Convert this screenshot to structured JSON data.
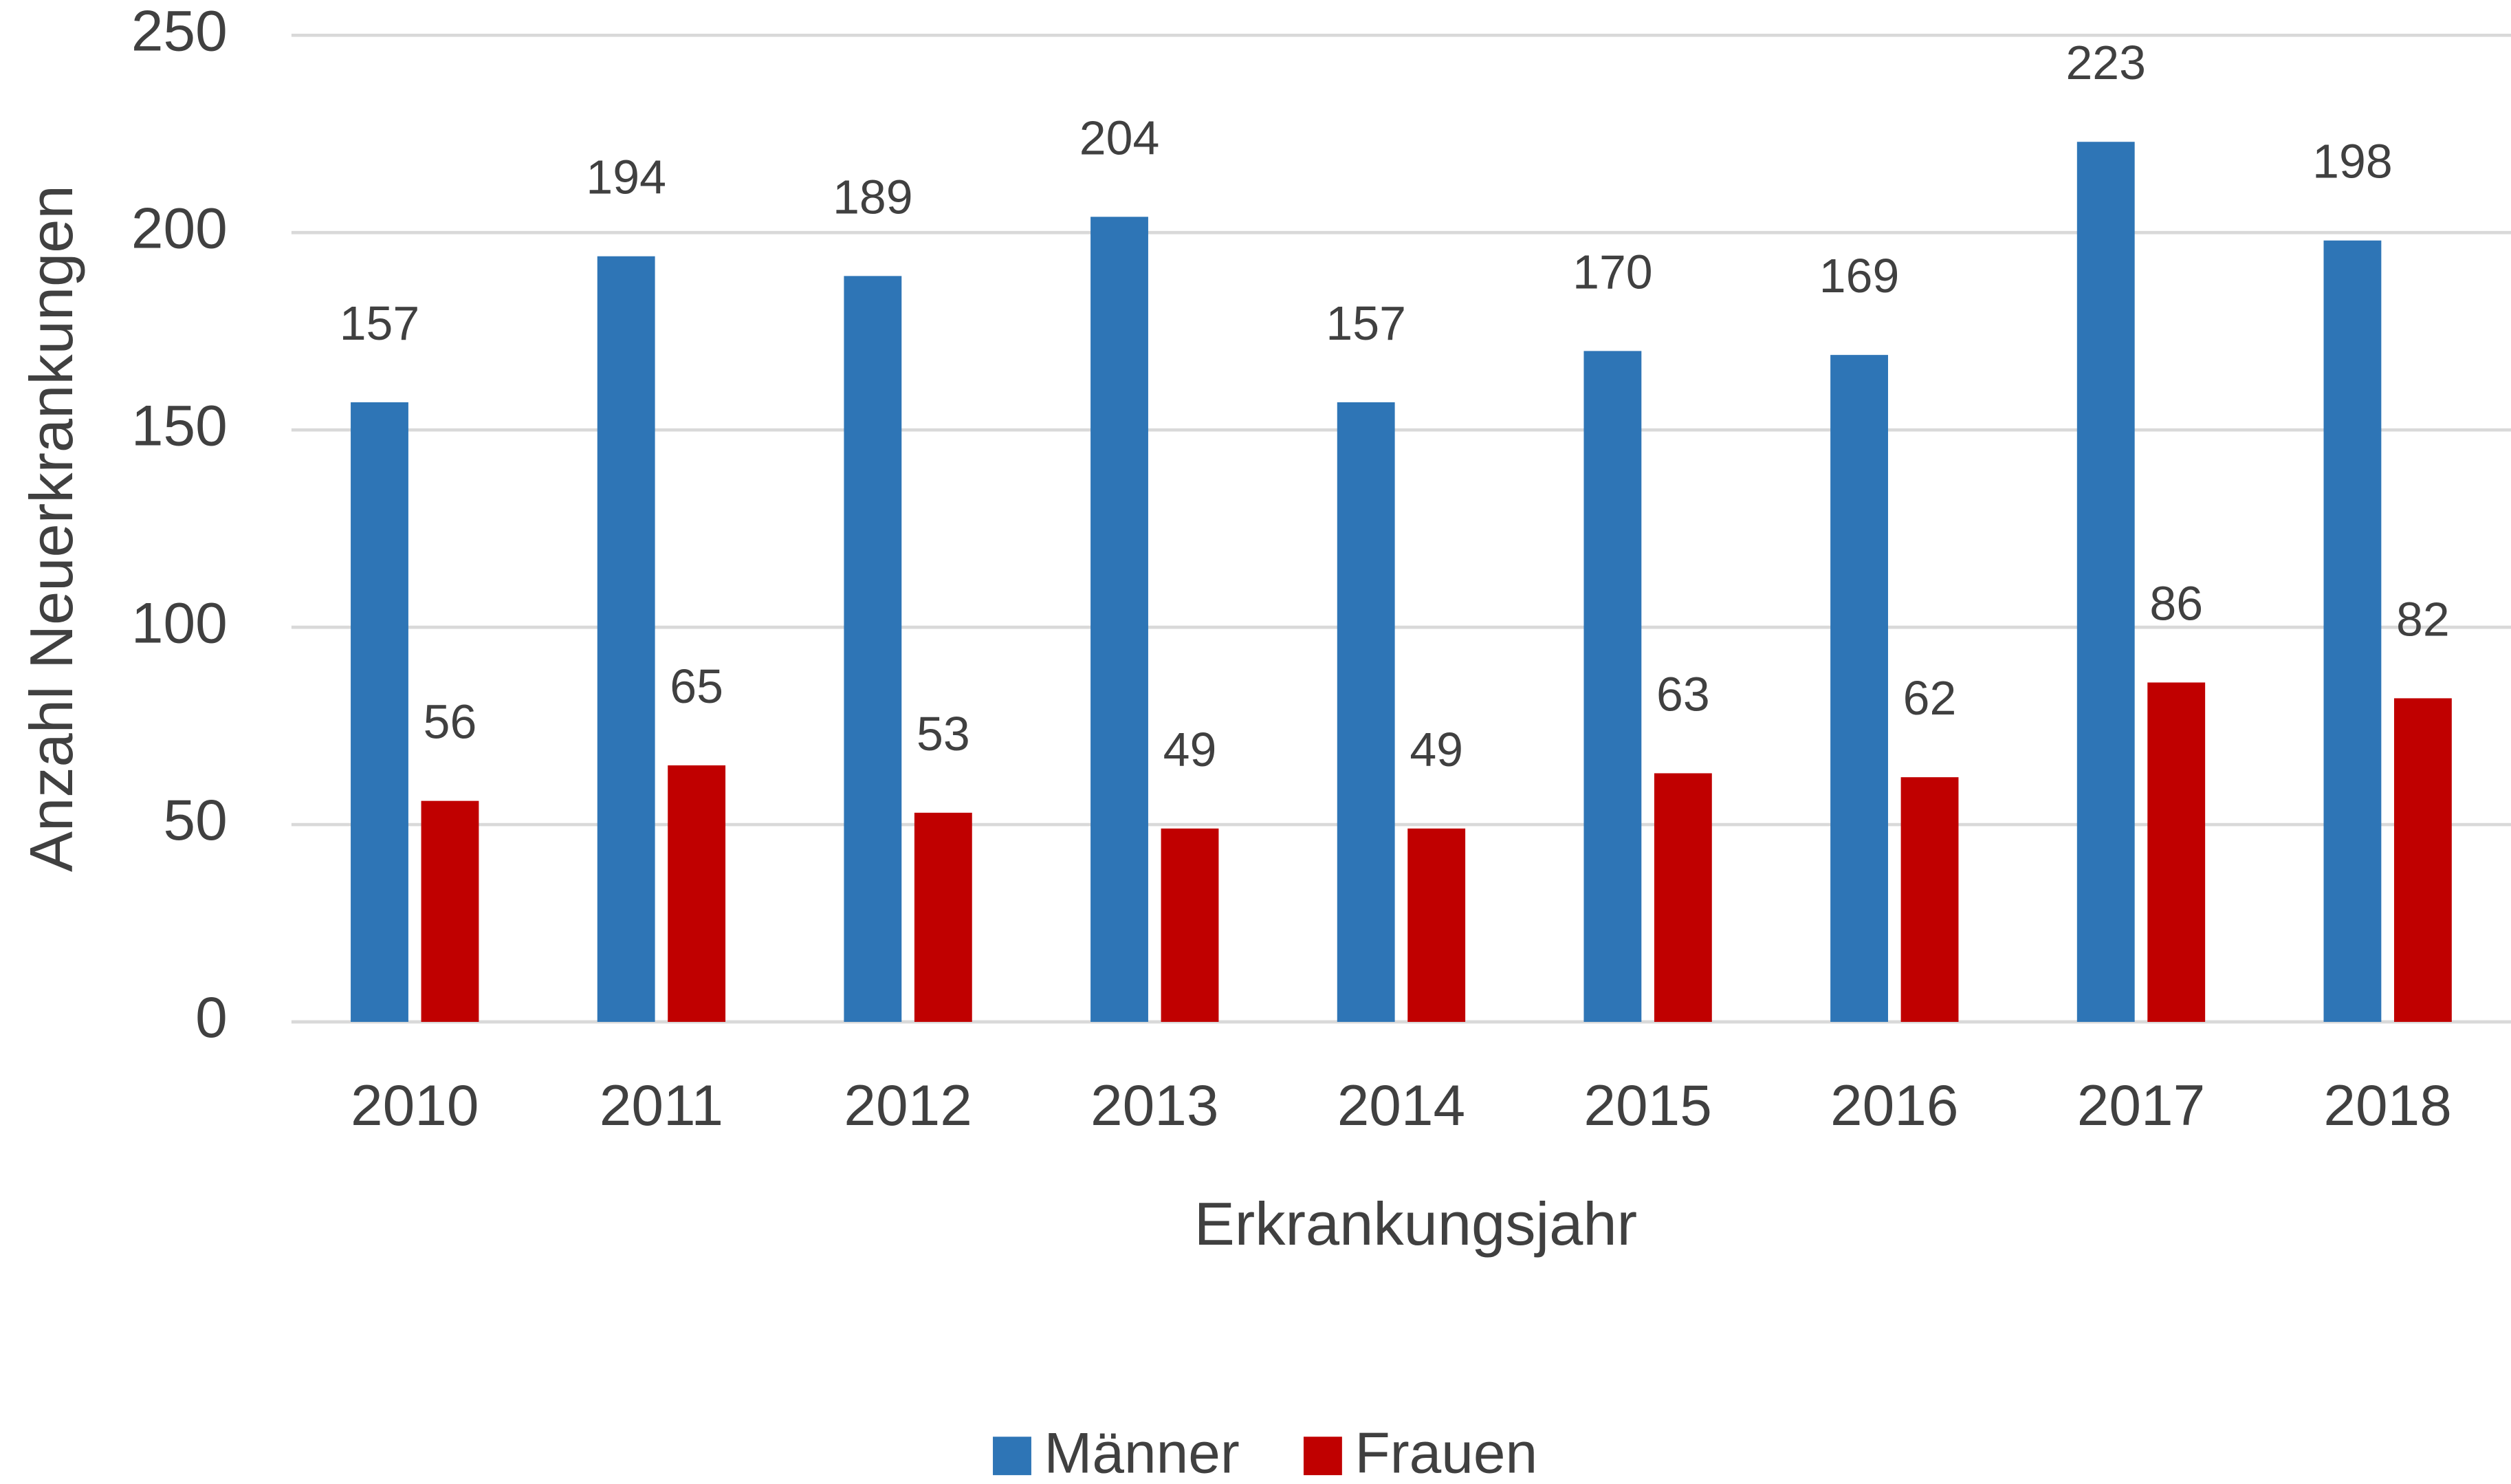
{
  "chart_data": {
    "type": "bar",
    "x_label": "Erkrankungsjahr",
    "y_label": "Anzahl Neuerkrankungen",
    "categories": [
      "2010",
      "2011",
      "2012",
      "2013",
      "2014",
      "2015",
      "2016",
      "2017",
      "2018"
    ],
    "series": [
      {
        "name": "Männer",
        "color": "#2e75b6",
        "values": [
          157,
          194,
          189,
          204,
          157,
          170,
          169,
          223,
          198
        ]
      },
      {
        "name": "Frauen",
        "color": "#c00000",
        "values": [
          56,
          65,
          53,
          49,
          49,
          63,
          62,
          86,
          82
        ]
      }
    ],
    "ylim": [
      0,
      250
    ],
    "yticks": [
      0,
      50,
      100,
      150,
      200,
      250
    ],
    "grid": true,
    "legend": "bottom"
  }
}
